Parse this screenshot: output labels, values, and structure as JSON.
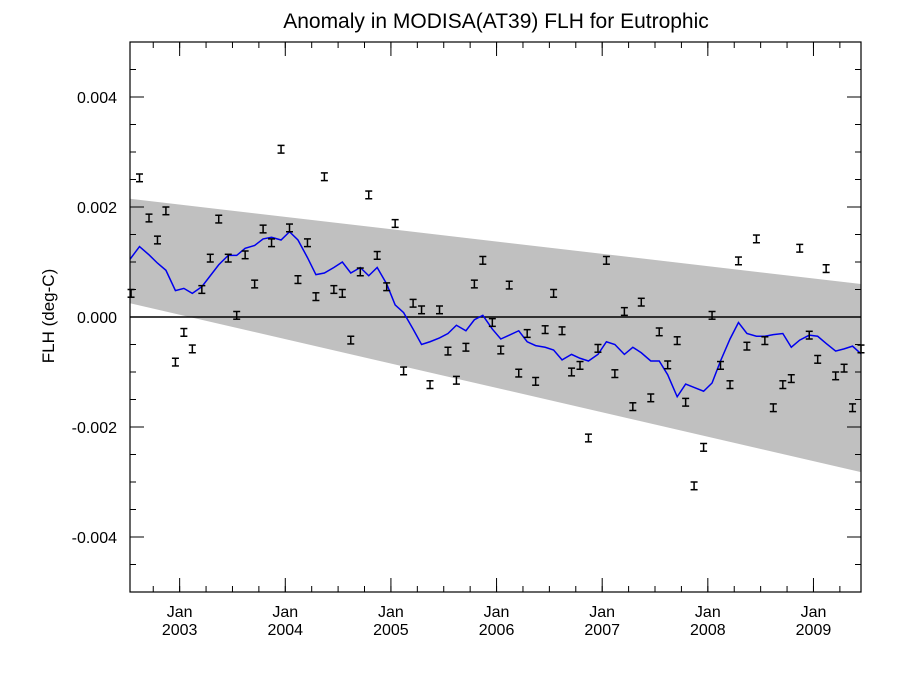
{
  "chart_data": {
    "type": "line",
    "title": "Anomaly in MODISA(AT39) FLH for Eutrophic",
    "xlabel": "",
    "ylabel": "FLH (deg-C)",
    "xlim": [
      2002.53,
      2009.45
    ],
    "ylim": [
      -0.005,
      0.005
    ],
    "grid": false,
    "yticks": [
      {
        "value": -0.004,
        "label": "-0.004"
      },
      {
        "value": -0.002,
        "label": "-0.002"
      },
      {
        "value": 0.0,
        "label": "0.000"
      },
      {
        "value": 0.002,
        "label": "0.002"
      },
      {
        "value": 0.004,
        "label": "0.004"
      }
    ],
    "xticks": [
      {
        "value": 2003.0,
        "label1": "Jan",
        "label2": "2003"
      },
      {
        "value": 2004.0,
        "label1": "Jan",
        "label2": "2004"
      },
      {
        "value": 2005.0,
        "label1": "Jan",
        "label2": "2005"
      },
      {
        "value": 2006.0,
        "label1": "Jan",
        "label2": "2006"
      },
      {
        "value": 2007.0,
        "label1": "Jan",
        "label2": "2007"
      },
      {
        "value": 2008.0,
        "label1": "Jan",
        "label2": "2008"
      },
      {
        "value": 2009.0,
        "label1": "Jan",
        "label2": "2009"
      }
    ],
    "band": {
      "x": [
        2002.53,
        2009.45
      ],
      "upper": [
        0.00215,
        0.0006
      ],
      "lower": [
        0.00025,
        -0.00282
      ]
    },
    "zero_line": 0.0,
    "colors": {
      "band": "#c0c0c0",
      "line": "#0000ee",
      "points": "#000000",
      "zero": "#000000"
    },
    "series": [
      {
        "kind": "points_with_errorbars",
        "errorbar_halfwidth": 7e-05,
        "x": [
          2002.54,
          2002.62,
          2002.71,
          2002.79,
          2002.87,
          2002.96,
          2003.04,
          2003.12,
          2003.21,
          2003.29,
          2003.37,
          2003.46,
          2003.54,
          2003.62,
          2003.71,
          2003.79,
          2003.87,
          2003.96,
          2004.04,
          2004.12,
          2004.21,
          2004.29,
          2004.37,
          2004.46,
          2004.54,
          2004.62,
          2004.71,
          2004.79,
          2004.87,
          2004.96,
          2005.04,
          2005.12,
          2005.21,
          2005.29,
          2005.37,
          2005.46,
          2005.54,
          2005.62,
          2005.71,
          2005.79,
          2005.87,
          2005.96,
          2006.04,
          2006.12,
          2006.21,
          2006.29,
          2006.37,
          2006.46,
          2006.54,
          2006.62,
          2006.71,
          2006.79,
          2006.87,
          2006.96,
          2007.04,
          2007.12,
          2007.21,
          2007.29,
          2007.37,
          2007.46,
          2007.54,
          2007.62,
          2007.71,
          2007.79,
          2007.87,
          2007.96,
          2008.04,
          2008.12,
          2008.21,
          2008.29,
          2008.37,
          2008.46,
          2008.54,
          2008.62,
          2008.71,
          2008.79,
          2008.87,
          2008.96,
          2009.04,
          2009.12,
          2009.21,
          2009.29,
          2009.37,
          2009.45
        ],
        "y": [
          0.00043,
          0.00253,
          0.0018,
          0.0014,
          0.00193,
          -0.00082,
          -0.00028,
          -0.00058,
          0.0005,
          0.00107,
          0.00178,
          0.00107,
          3e-05,
          0.00113,
          0.0006,
          0.0016,
          0.00135,
          0.00305,
          0.00162,
          0.00068,
          0.00135,
          0.00037,
          0.00255,
          0.0005,
          0.00043,
          -0.00042,
          0.00082,
          0.00222,
          0.00112,
          0.00055,
          0.0017,
          -0.00098,
          0.00025,
          0.00013,
          -0.00123,
          0.00013,
          -0.00062,
          -0.00115,
          -0.00055,
          0.0006,
          0.00103,
          -0.0001,
          -0.0006,
          0.00058,
          -0.00102,
          -0.0003,
          -0.00117,
          -0.00023,
          0.00043,
          -0.00025,
          -0.001,
          -0.00088,
          -0.0022,
          -0.00057,
          0.00103,
          -0.00103,
          0.0001,
          -0.00163,
          0.00027,
          -0.00147,
          -0.00027,
          -0.00087,
          -0.00043,
          -0.00155,
          -0.00307,
          -0.00237,
          3e-05,
          -0.00088,
          -0.00123,
          0.00102,
          -0.00053,
          0.00142,
          -0.00043,
          -0.00165,
          -0.00123,
          -0.00112,
          0.00125,
          -0.00033,
          -0.00077,
          0.00088,
          -0.00107,
          -0.00093,
          -0.00165,
          -0.00058
        ]
      },
      {
        "kind": "smoothed_line",
        "x": [
          2002.53,
          2002.62,
          2002.71,
          2002.79,
          2002.87,
          2002.96,
          2003.04,
          2003.12,
          2003.21,
          2003.29,
          2003.37,
          2003.46,
          2003.54,
          2003.62,
          2003.71,
          2003.79,
          2003.87,
          2003.96,
          2004.04,
          2004.12,
          2004.21,
          2004.29,
          2004.37,
          2004.46,
          2004.54,
          2004.62,
          2004.71,
          2004.79,
          2004.87,
          2004.96,
          2005.04,
          2005.12,
          2005.21,
          2005.29,
          2005.37,
          2005.46,
          2005.54,
          2005.62,
          2005.71,
          2005.79,
          2005.87,
          2005.96,
          2006.04,
          2006.12,
          2006.21,
          2006.29,
          2006.37,
          2006.46,
          2006.54,
          2006.62,
          2006.71,
          2006.79,
          2006.87,
          2006.96,
          2007.04,
          2007.12,
          2007.21,
          2007.29,
          2007.37,
          2007.46,
          2007.54,
          2007.62,
          2007.71,
          2007.79,
          2007.87,
          2007.96,
          2008.04,
          2008.12,
          2008.21,
          2008.29,
          2008.37,
          2008.46,
          2008.54,
          2008.62,
          2008.71,
          2008.79,
          2008.87,
          2008.96,
          2009.04,
          2009.12,
          2009.21,
          2009.29,
          2009.37,
          2009.45
        ],
        "y": [
          0.00105,
          0.00128,
          0.00113,
          0.00098,
          0.00085,
          0.00048,
          0.00052,
          0.00043,
          0.00055,
          0.00075,
          0.00095,
          0.00112,
          0.00112,
          0.00125,
          0.0013,
          0.00142,
          0.00145,
          0.0014,
          0.00155,
          0.0014,
          0.00108,
          0.00077,
          0.0008,
          0.0009,
          0.001,
          0.0008,
          0.0009,
          0.00075,
          0.0009,
          0.0006,
          0.00022,
          8e-05,
          -0.00022,
          -0.0005,
          -0.00045,
          -0.00038,
          -0.0003,
          -0.00015,
          -0.00025,
          -5e-05,
          3e-05,
          -0.00022,
          -0.0004,
          -0.00033,
          -0.00025,
          -0.00045,
          -0.00052,
          -0.00055,
          -0.0006,
          -0.00078,
          -0.00068,
          -0.00075,
          -0.0008,
          -0.00068,
          -0.00045,
          -0.0005,
          -0.00068,
          -0.00055,
          -0.00065,
          -0.0008,
          -0.0008,
          -0.00105,
          -0.00145,
          -0.00122,
          -0.00128,
          -0.00135,
          -0.0012,
          -0.0008,
          -0.0004,
          -0.0001,
          -0.0003,
          -0.00035,
          -0.00035,
          -0.00032,
          -0.0003,
          -0.00055,
          -0.00042,
          -0.00033,
          -0.00035,
          -0.00048,
          -0.00062,
          -0.00058,
          -0.00053,
          -0.00067
        ]
      }
    ]
  }
}
